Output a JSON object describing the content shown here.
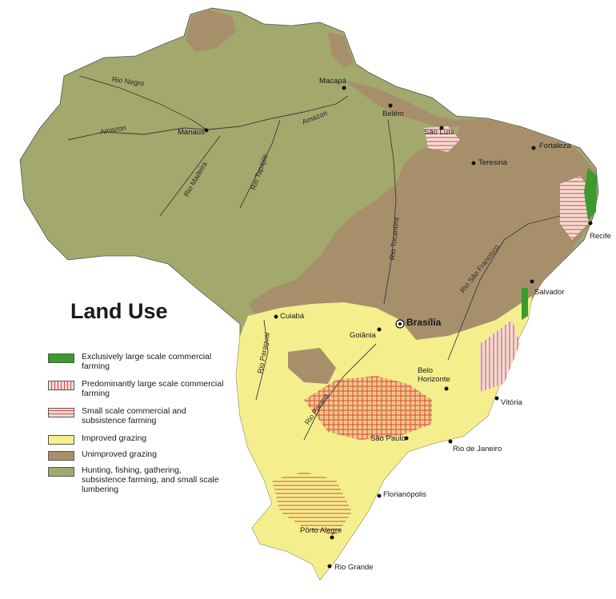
{
  "title": "Land Use",
  "legend": [
    {
      "label": "Exclusively large scale commercial farming",
      "color": "#3c9a2e",
      "pattern": "solid"
    },
    {
      "label": "Predominantly large scale commercial farming",
      "color": "#f2dcd6",
      "pattern": "vertical-red-lines"
    },
    {
      "label": "Small scale commercial and subsistence farming",
      "color": "#f2dcd6",
      "pattern": "horizontal-red-lines"
    },
    {
      "label": "Improved grazing",
      "color": "#f5ee8c",
      "pattern": "solid"
    },
    {
      "label": "Unimproved grazing",
      "color": "#a88f6c",
      "pattern": "solid"
    },
    {
      "label": "Hunting, fishing, gathering, subsistence farming, and small scale lumbering",
      "color": "#a3a86c",
      "pattern": "solid"
    }
  ],
  "cities": {
    "macapa": "Macapá",
    "belem": "Belém",
    "sao_luis": "São Luís",
    "fortaleza": "Fortaleza",
    "teresina": "Teresina",
    "recife": "Recife",
    "manaus": "Manaus",
    "salvador": "Salvador",
    "cuiaba": "Cuiabá",
    "brasilia": "Brasília",
    "goiania": "Goiânia",
    "belo_horizonte": "Belo Horizonte",
    "vitoria": "Vitória",
    "sao_paulo": "São Paulo",
    "rio_de_janeiro": "Rio de Janeiro",
    "florianopolis": "Florianópolis",
    "porto_alegre": "Pôrto Alegre",
    "rio_grande": "Rio Grande"
  },
  "rivers": {
    "rio_negro": "Rio Negro",
    "amazon_west": "Amazon",
    "amazon_east": "Amazon",
    "rio_madeira": "Rio Madeira",
    "rio_tapajos": "Rio Tapajós",
    "rio_tocantins": "Rio Tocantins",
    "rio_sao_francisco": "Rio São Francisco",
    "rio_paraguai": "Rio Paraguai",
    "rio_parana": "Rio Paraná"
  }
}
